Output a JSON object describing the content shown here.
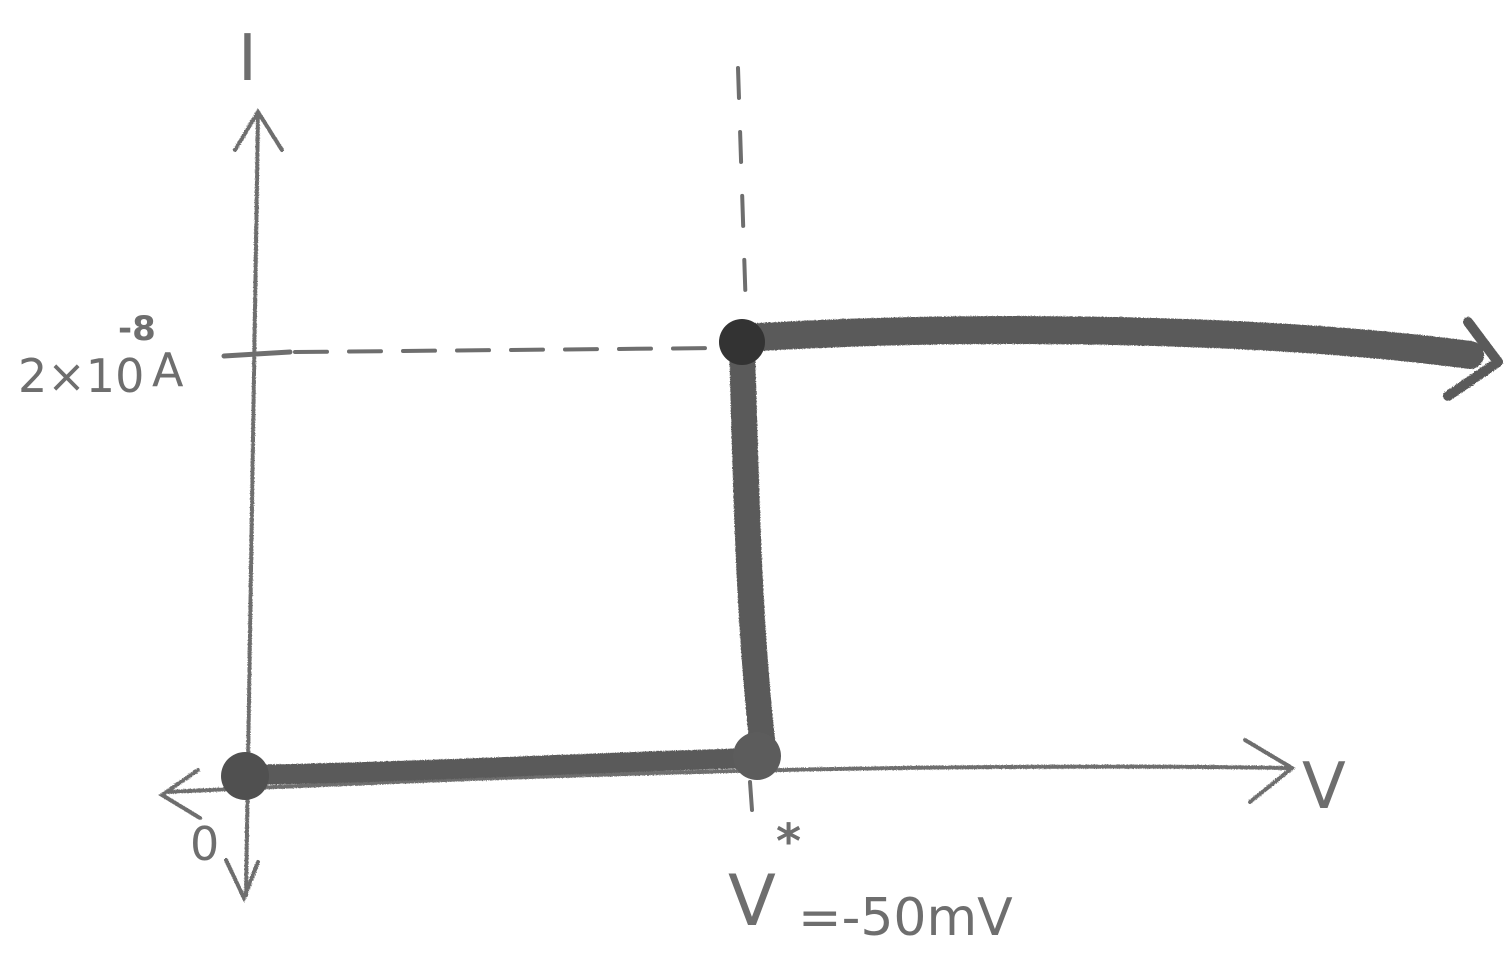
{
  "diagram": {
    "colors": {
      "ink": "#6e6e6e",
      "ink_thick": "#555555",
      "ink_dark": "#333333",
      "background": "#ffffff"
    },
    "y_axis": {
      "label": "I"
    },
    "x_axis": {
      "label": "V"
    },
    "origin": {
      "label": "0"
    },
    "current_tick": {
      "mantissa": "2×10",
      "exponent": "-8",
      "unit": "A"
    },
    "threshold": {
      "symbol": "V",
      "superscript": "*",
      "value": "=-50mV"
    }
  }
}
